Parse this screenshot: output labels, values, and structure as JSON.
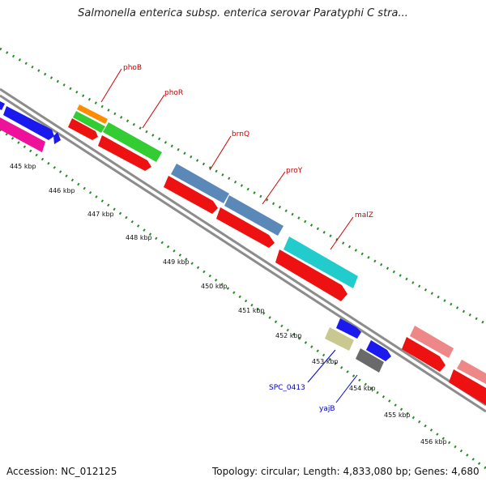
{
  "title": "Salmonella enterica subsp. enterica serovar Paratyphi C stra...",
  "footer": {
    "accession": "Accession: NC_012125",
    "summary": "Topology: circular; Length: 4,833,080 bp; Genes: 4,680"
  },
  "ruler_labels": [
    "445 kbp",
    "446 kbp",
    "447 kbp",
    "448 kbp",
    "449 kbp",
    "450 kbp",
    "451 kbp",
    "452 kbp",
    "453 kbp",
    "454 kbp",
    "455 kbp",
    "456 kbp"
  ],
  "genes": [
    {
      "name": "phoB",
      "color": "#cc0000"
    },
    {
      "name": "phoR",
      "color": "#cc0000"
    },
    {
      "name": "brnQ",
      "color": "#cc0000"
    },
    {
      "name": "proY",
      "color": "#cc0000"
    },
    {
      "name": "malZ",
      "color": "#cc0000"
    },
    {
      "name": "SPC_0413",
      "color": "#0000cc"
    },
    {
      "name": "yajB",
      "color": "#0000cc"
    }
  ],
  "colors": {
    "backbone": "#8c8c8c",
    "ticks": "#2a8a2a",
    "cds_red": "#ee1111",
    "blue": "#1a1aee",
    "magenta": "#ee1199",
    "green": "#33cc33",
    "orange": "#ff8c00",
    "steelblue": "#5a88b8",
    "cyan": "#22cccc",
    "olive": "#c8c890",
    "gray": "#6a6a6a",
    "pink": "#ee8888"
  }
}
